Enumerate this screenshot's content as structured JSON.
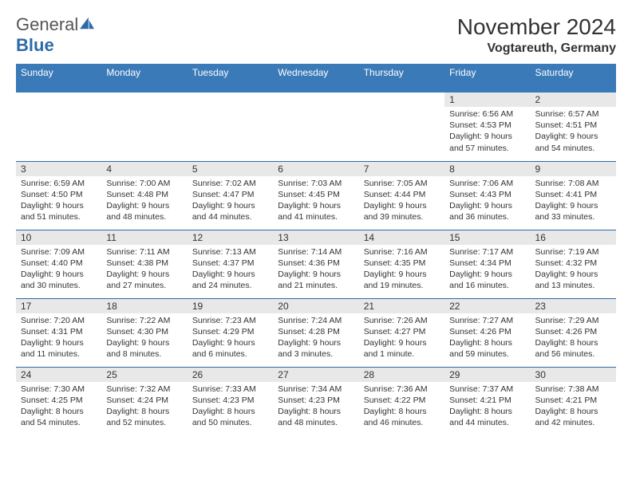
{
  "brand": {
    "name1": "General",
    "name2": "Blue"
  },
  "title": "November 2024",
  "location": "Vogtareuth, Germany",
  "colors": {
    "header_bg": "#3a7ab8",
    "daynum_bg": "#e8e8e8",
    "border": "#2d6aa8",
    "text": "#333333",
    "brand_blue": "#2d6aa8"
  },
  "weekdays": [
    "Sunday",
    "Monday",
    "Tuesday",
    "Wednesday",
    "Thursday",
    "Friday",
    "Saturday"
  ],
  "weeks": [
    [
      {
        "day": "",
        "sunrise": "",
        "sunset": "",
        "daylight": ""
      },
      {
        "day": "",
        "sunrise": "",
        "sunset": "",
        "daylight": ""
      },
      {
        "day": "",
        "sunrise": "",
        "sunset": "",
        "daylight": ""
      },
      {
        "day": "",
        "sunrise": "",
        "sunset": "",
        "daylight": ""
      },
      {
        "day": "",
        "sunrise": "",
        "sunset": "",
        "daylight": ""
      },
      {
        "day": "1",
        "sunrise": "Sunrise: 6:56 AM",
        "sunset": "Sunset: 4:53 PM",
        "daylight": "Daylight: 9 hours and 57 minutes."
      },
      {
        "day": "2",
        "sunrise": "Sunrise: 6:57 AM",
        "sunset": "Sunset: 4:51 PM",
        "daylight": "Daylight: 9 hours and 54 minutes."
      }
    ],
    [
      {
        "day": "3",
        "sunrise": "Sunrise: 6:59 AM",
        "sunset": "Sunset: 4:50 PM",
        "daylight": "Daylight: 9 hours and 51 minutes."
      },
      {
        "day": "4",
        "sunrise": "Sunrise: 7:00 AM",
        "sunset": "Sunset: 4:48 PM",
        "daylight": "Daylight: 9 hours and 48 minutes."
      },
      {
        "day": "5",
        "sunrise": "Sunrise: 7:02 AM",
        "sunset": "Sunset: 4:47 PM",
        "daylight": "Daylight: 9 hours and 44 minutes."
      },
      {
        "day": "6",
        "sunrise": "Sunrise: 7:03 AM",
        "sunset": "Sunset: 4:45 PM",
        "daylight": "Daylight: 9 hours and 41 minutes."
      },
      {
        "day": "7",
        "sunrise": "Sunrise: 7:05 AM",
        "sunset": "Sunset: 4:44 PM",
        "daylight": "Daylight: 9 hours and 39 minutes."
      },
      {
        "day": "8",
        "sunrise": "Sunrise: 7:06 AM",
        "sunset": "Sunset: 4:43 PM",
        "daylight": "Daylight: 9 hours and 36 minutes."
      },
      {
        "day": "9",
        "sunrise": "Sunrise: 7:08 AM",
        "sunset": "Sunset: 4:41 PM",
        "daylight": "Daylight: 9 hours and 33 minutes."
      }
    ],
    [
      {
        "day": "10",
        "sunrise": "Sunrise: 7:09 AM",
        "sunset": "Sunset: 4:40 PM",
        "daylight": "Daylight: 9 hours and 30 minutes."
      },
      {
        "day": "11",
        "sunrise": "Sunrise: 7:11 AM",
        "sunset": "Sunset: 4:38 PM",
        "daylight": "Daylight: 9 hours and 27 minutes."
      },
      {
        "day": "12",
        "sunrise": "Sunrise: 7:13 AM",
        "sunset": "Sunset: 4:37 PM",
        "daylight": "Daylight: 9 hours and 24 minutes."
      },
      {
        "day": "13",
        "sunrise": "Sunrise: 7:14 AM",
        "sunset": "Sunset: 4:36 PM",
        "daylight": "Daylight: 9 hours and 21 minutes."
      },
      {
        "day": "14",
        "sunrise": "Sunrise: 7:16 AM",
        "sunset": "Sunset: 4:35 PM",
        "daylight": "Daylight: 9 hours and 19 minutes."
      },
      {
        "day": "15",
        "sunrise": "Sunrise: 7:17 AM",
        "sunset": "Sunset: 4:34 PM",
        "daylight": "Daylight: 9 hours and 16 minutes."
      },
      {
        "day": "16",
        "sunrise": "Sunrise: 7:19 AM",
        "sunset": "Sunset: 4:32 PM",
        "daylight": "Daylight: 9 hours and 13 minutes."
      }
    ],
    [
      {
        "day": "17",
        "sunrise": "Sunrise: 7:20 AM",
        "sunset": "Sunset: 4:31 PM",
        "daylight": "Daylight: 9 hours and 11 minutes."
      },
      {
        "day": "18",
        "sunrise": "Sunrise: 7:22 AM",
        "sunset": "Sunset: 4:30 PM",
        "daylight": "Daylight: 9 hours and 8 minutes."
      },
      {
        "day": "19",
        "sunrise": "Sunrise: 7:23 AM",
        "sunset": "Sunset: 4:29 PM",
        "daylight": "Daylight: 9 hours and 6 minutes."
      },
      {
        "day": "20",
        "sunrise": "Sunrise: 7:24 AM",
        "sunset": "Sunset: 4:28 PM",
        "daylight": "Daylight: 9 hours and 3 minutes."
      },
      {
        "day": "21",
        "sunrise": "Sunrise: 7:26 AM",
        "sunset": "Sunset: 4:27 PM",
        "daylight": "Daylight: 9 hours and 1 minute."
      },
      {
        "day": "22",
        "sunrise": "Sunrise: 7:27 AM",
        "sunset": "Sunset: 4:26 PM",
        "daylight": "Daylight: 8 hours and 59 minutes."
      },
      {
        "day": "23",
        "sunrise": "Sunrise: 7:29 AM",
        "sunset": "Sunset: 4:26 PM",
        "daylight": "Daylight: 8 hours and 56 minutes."
      }
    ],
    [
      {
        "day": "24",
        "sunrise": "Sunrise: 7:30 AM",
        "sunset": "Sunset: 4:25 PM",
        "daylight": "Daylight: 8 hours and 54 minutes."
      },
      {
        "day": "25",
        "sunrise": "Sunrise: 7:32 AM",
        "sunset": "Sunset: 4:24 PM",
        "daylight": "Daylight: 8 hours and 52 minutes."
      },
      {
        "day": "26",
        "sunrise": "Sunrise: 7:33 AM",
        "sunset": "Sunset: 4:23 PM",
        "daylight": "Daylight: 8 hours and 50 minutes."
      },
      {
        "day": "27",
        "sunrise": "Sunrise: 7:34 AM",
        "sunset": "Sunset: 4:23 PM",
        "daylight": "Daylight: 8 hours and 48 minutes."
      },
      {
        "day": "28",
        "sunrise": "Sunrise: 7:36 AM",
        "sunset": "Sunset: 4:22 PM",
        "daylight": "Daylight: 8 hours and 46 minutes."
      },
      {
        "day": "29",
        "sunrise": "Sunrise: 7:37 AM",
        "sunset": "Sunset: 4:21 PM",
        "daylight": "Daylight: 8 hours and 44 minutes."
      },
      {
        "day": "30",
        "sunrise": "Sunrise: 7:38 AM",
        "sunset": "Sunset: 4:21 PM",
        "daylight": "Daylight: 8 hours and 42 minutes."
      }
    ]
  ]
}
